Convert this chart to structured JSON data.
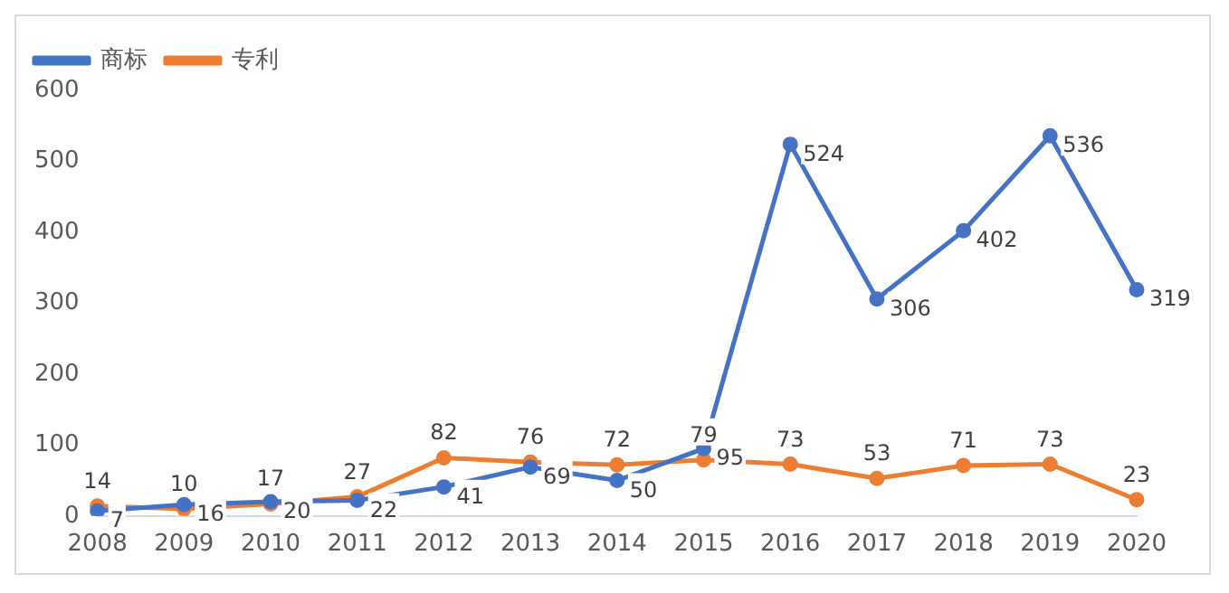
{
  "chart_data": {
    "type": "line",
    "categories": [
      "2008",
      "2009",
      "2010",
      "2011",
      "2012",
      "2013",
      "2014",
      "2015",
      "2016",
      "2017",
      "2018",
      "2019",
      "2020"
    ],
    "series": [
      {
        "name": "商标",
        "color": "#4472c4",
        "values": [
          7,
          16,
          20,
          22,
          41,
          69,
          50,
          95,
          524,
          306,
          402,
          536,
          319
        ]
      },
      {
        "name": "专利",
        "color": "#ed7d31",
        "values": [
          14,
          10,
          17,
          27,
          82,
          76,
          72,
          79,
          73,
          53,
          71,
          73,
          23
        ]
      }
    ],
    "ylim": [
      0,
      600
    ],
    "yticks": [
      0,
      100,
      200,
      300,
      400,
      500,
      600
    ],
    "grid": false,
    "legend": "top left",
    "marker": "circle",
    "line_style": "solid",
    "data_labels": true
  }
}
